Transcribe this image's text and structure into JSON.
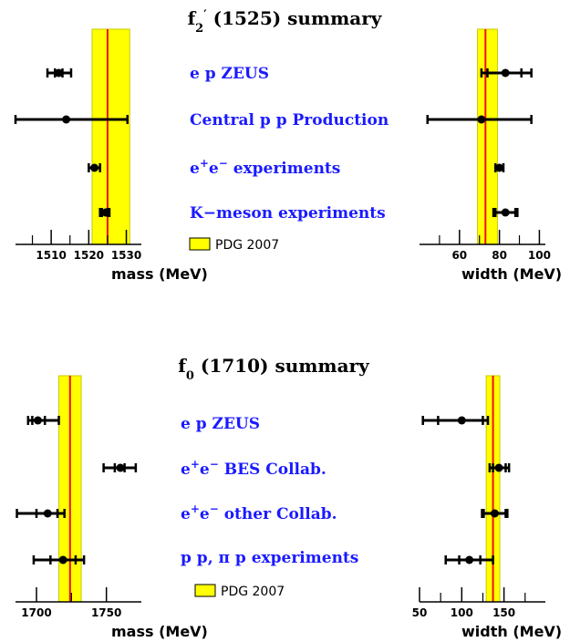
{
  "colors": {
    "band": "#ffff00",
    "band_stroke": "#c9c900",
    "pdg_line": "#ee1111",
    "label": "#1a1aff",
    "marker": "#000000"
  },
  "chart_data": [
    {
      "id": "f2p_mass",
      "type": "errorbar",
      "xlabel": "mass (MeV)",
      "xlim": [
        1500.5,
        1534
      ],
      "tick_labels": [
        1510,
        1520,
        1530
      ],
      "pdg": {
        "value": 1525,
        "band": [
          1520.9,
          1530.9
        ]
      },
      "points": [
        {
          "label": "e p ZEUS",
          "y": 1512.0,
          "lo_stat": 1511.0,
          "hi_stat": 1513.0,
          "lo_tot": 1509.0,
          "hi_tot": 1515.3
        },
        {
          "label": "Central p p Production",
          "y": 1514.0,
          "lo_stat": 1514.0,
          "hi_stat": 1514.0,
          "lo_tot": 1500.5,
          "hi_tot": 1530.3
        },
        {
          "label": "e+e- experiments",
          "y": 1521.5,
          "lo_stat": 1521.5,
          "hi_stat": 1521.5,
          "lo_tot": 1520.0,
          "hi_tot": 1523.0
        },
        {
          "label": "K-meson experiments",
          "y": 1524.5,
          "lo_stat": 1523.5,
          "hi_stat": 1525.0,
          "lo_tot": 1523.0,
          "hi_tot": 1525.5
        }
      ]
    },
    {
      "id": "f2p_width",
      "type": "errorbar",
      "xlabel": "width (MeV)",
      "xlim": [
        40,
        103
      ],
      "tick_labels": [
        60,
        80,
        100
      ],
      "pdg": {
        "value": 73,
        "band": [
          69,
          79
        ]
      },
      "points": [
        {
          "label": "e p ZEUS",
          "y": 83,
          "lo_stat": 74,
          "hi_stat": 91,
          "lo_tot": 71,
          "hi_tot": 96
        },
        {
          "label": "Central p p Production",
          "y": 71,
          "lo_stat": 71,
          "hi_stat": 71,
          "lo_tot": 44,
          "hi_tot": 96
        },
        {
          "label": "e+e- experiments",
          "y": 80,
          "lo_stat": 80,
          "hi_stat": 80,
          "lo_tot": 78,
          "hi_tot": 82
        },
        {
          "label": "K-meson experiments",
          "y": 83,
          "lo_stat": 78,
          "hi_stat": 88,
          "lo_tot": 77,
          "hi_tot": 89
        }
      ]
    },
    {
      "id": "f0_mass",
      "type": "errorbar",
      "xlabel": "mass (MeV)",
      "xlim": [
        1685,
        1775
      ],
      "tick_labels": [
        1700,
        1750
      ],
      "pdg": {
        "value": 1724,
        "band": [
          1716,
          1732
        ]
      },
      "points": [
        {
          "label": "e p ZEUS",
          "y": 1701,
          "lo_stat": 1697,
          "hi_stat": 1706,
          "lo_tot": 1694,
          "hi_tot": 1716
        },
        {
          "label": "e+e- BES Collab.",
          "y": 1760,
          "lo_stat": 1756,
          "hi_stat": 1763,
          "lo_tot": 1748,
          "hi_tot": 1771
        },
        {
          "label": "e+e- other Collab.",
          "y": 1708,
          "lo_stat": 1700,
          "hi_stat": 1715,
          "lo_tot": 1686,
          "hi_tot": 1720
        },
        {
          "label": "p p, π p experiments",
          "y": 1719,
          "lo_stat": 1710,
          "hi_stat": 1728,
          "lo_tot": 1698,
          "hi_tot": 1734
        }
      ]
    },
    {
      "id": "f0_width",
      "type": "errorbar",
      "xlabel": "width (MeV)",
      "xlim": [
        50,
        199
      ],
      "tick_labels": [
        50,
        100,
        150
      ],
      "pdg": {
        "value": 137,
        "band": [
          129,
          145
        ]
      },
      "points": [
        {
          "label": "e p ZEUS",
          "y": 100,
          "lo_stat": 72,
          "hi_stat": 125,
          "lo_tot": 54,
          "hi_tot": 131
        },
        {
          "label": "e+e- BES Collab.",
          "y": 144,
          "lo_stat": 137,
          "hi_stat": 152,
          "lo_tot": 133,
          "hi_tot": 156
        },
        {
          "label": "e+e- other Collab.",
          "y": 139,
          "lo_stat": 126,
          "hi_stat": 152,
          "lo_tot": 124,
          "hi_tot": 154
        },
        {
          "label": "p p, π p experiments",
          "y": 109,
          "lo_stat": 97,
          "hi_stat": 122,
          "lo_tot": 81,
          "hi_tot": 137
        }
      ]
    }
  ],
  "sections": [
    {
      "title_main": "f",
      "title_sub": "2",
      "title_sup": "′",
      "title_rest": " (1525) summary",
      "experiments": [
        {
          "parts": [
            {
              "t": "e p ZEUS"
            }
          ]
        },
        {
          "parts": [
            {
              "t": "Central p p Production"
            }
          ]
        },
        {
          "parts": [
            {
              "t": "e"
            },
            {
              "t": "+",
              "sup": true
            },
            {
              "t": "e"
            },
            {
              "t": "−",
              "sup": true
            },
            {
              "t": " experiments"
            }
          ]
        },
        {
          "parts": [
            {
              "t": "K−meson experiments"
            }
          ]
        }
      ],
      "legend": "PDG 2007"
    },
    {
      "title_main": "f",
      "title_sub": "0",
      "title_sup": "",
      "title_rest": " (1710) summary",
      "experiments": [
        {
          "parts": [
            {
              "t": "e p ZEUS"
            }
          ]
        },
        {
          "parts": [
            {
              "t": "e"
            },
            {
              "t": "+",
              "sup": true
            },
            {
              "t": "e"
            },
            {
              "t": "−",
              "sup": true
            },
            {
              "t": " BES Collab."
            }
          ]
        },
        {
          "parts": [
            {
              "t": "e"
            },
            {
              "t": "+",
              "sup": true
            },
            {
              "t": "e"
            },
            {
              "t": "−",
              "sup": true
            },
            {
              "t": " other Collab."
            }
          ]
        },
        {
          "parts": [
            {
              "t": "p p, π p experiments"
            }
          ]
        }
      ],
      "legend": "PDG 2007"
    }
  ]
}
